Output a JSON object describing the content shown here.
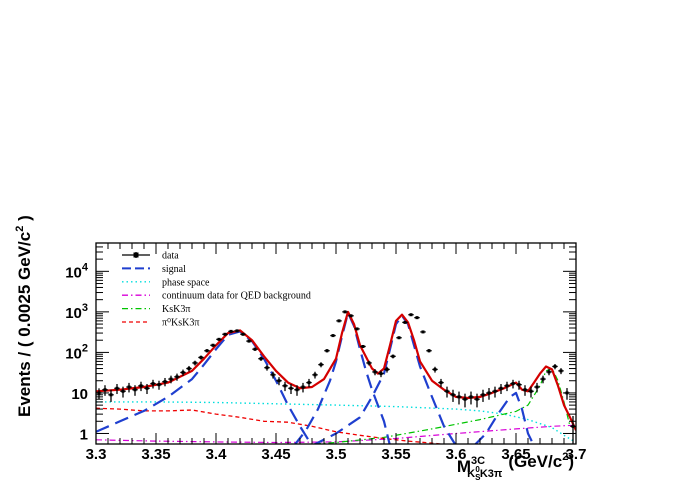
{
  "chart_data": {
    "type": "line",
    "title": "",
    "xlabel": {
      "main": "M",
      "sup": "3C",
      "sub_pre": "K",
      "sub_s": "S",
      "sub_sup": "0",
      "sub_post": "K3π",
      "unit": "(GeV/c",
      "unit_sup": "2",
      "unit_close": ")"
    },
    "ylabel": {
      "main": "Events / ( 0.0025 GeV/c",
      "sup": "2",
      "close": " )"
    },
    "xlim": [
      3.3,
      3.7
    ],
    "ylim": [
      0.55,
      50000
    ],
    "log_y": true,
    "x_ticks": [
      "3.3",
      "3.35",
      "3.4",
      "3.45",
      "3.5",
      "3.55",
      "3.6",
      "3.65",
      "3.7"
    ],
    "y_ticks": [
      {
        "value": 1,
        "label": "1"
      },
      {
        "value": 10,
        "label": "10"
      },
      {
        "value": 100,
        "label": "10",
        "exp": "2"
      },
      {
        "value": 1000,
        "label": "10",
        "exp": "3"
      },
      {
        "value": 10000,
        "label": "10",
        "exp": "4"
      }
    ],
    "legend": [
      {
        "label": "data",
        "color": "#000000",
        "style": "marker"
      },
      {
        "label": "signal",
        "color": "#1f3fcf",
        "style": "long-dash"
      },
      {
        "label": "phase space",
        "color": "#00dede",
        "style": "dotted"
      },
      {
        "label": "continuum data for QED background",
        "color": "#d800d8",
        "style": "dash-dot"
      },
      {
        "label": "KsK3π",
        "color": "#00c400",
        "style": "dash-dot"
      },
      {
        "label": "π⁰KsK3π",
        "color": "#ef0000",
        "style": "dashed"
      }
    ],
    "legend_position": "top-left",
    "series": [
      {
        "name": "total fit",
        "color": "#d40000",
        "style": "solid",
        "x": [
          3.3,
          3.32,
          3.34,
          3.36,
          3.38,
          3.39,
          3.4,
          3.41,
          3.42,
          3.43,
          3.44,
          3.45,
          3.46,
          3.47,
          3.48,
          3.49,
          3.5,
          3.505,
          3.51,
          3.515,
          3.52,
          3.53,
          3.535,
          3.54,
          3.545,
          3.55,
          3.555,
          3.56,
          3.565,
          3.57,
          3.58,
          3.59,
          3.6,
          3.61,
          3.62,
          3.63,
          3.64,
          3.65,
          3.655,
          3.66,
          3.665,
          3.67,
          3.675,
          3.68,
          3.685,
          3.69,
          3.695,
          3.7
        ],
        "y": [
          11,
          12,
          14,
          18,
          35,
          70,
          150,
          300,
          350,
          200,
          80,
          35,
          18,
          13,
          14,
          22,
          70,
          300,
          1000,
          500,
          150,
          40,
          30,
          40,
          150,
          600,
          850,
          550,
          200,
          60,
          20,
          12,
          8,
          7.5,
          8,
          10,
          13,
          18,
          12,
          11,
          18,
          30,
          45,
          38,
          15,
          5,
          2.5,
          1.2
        ]
      },
      {
        "name": "signal 1",
        "color": "#1f3fcf",
        "style": "long-dash",
        "x": [
          3.3,
          3.32,
          3.34,
          3.36,
          3.38,
          3.39,
          3.4,
          3.41,
          3.42,
          3.43,
          3.44,
          3.45,
          3.46,
          3.47,
          3.48
        ],
        "y": [
          1.1,
          2.0,
          3.6,
          8,
          22,
          50,
          120,
          270,
          330,
          190,
          70,
          20,
          5,
          1.5,
          0.5
        ]
      },
      {
        "name": "signal 2",
        "color": "#1f3fcf",
        "style": "long-dash",
        "x": [
          3.465,
          3.475,
          3.485,
          3.495,
          3.5,
          3.505,
          3.51,
          3.515,
          3.52,
          3.525,
          3.53,
          3.54,
          3.545
        ],
        "y": [
          0.5,
          1.2,
          4,
          20,
          60,
          250,
          950,
          450,
          120,
          35,
          12,
          2,
          0.5
        ]
      },
      {
        "name": "signal 3",
        "color": "#1f3fcf",
        "style": "long-dash",
        "x": [
          3.48,
          3.5,
          3.52,
          3.53,
          3.54,
          3.545,
          3.55,
          3.555,
          3.56,
          3.565,
          3.57,
          3.58,
          3.59,
          3.6
        ],
        "y": [
          0.5,
          1.0,
          2.5,
          8,
          30,
          120,
          500,
          800,
          500,
          150,
          45,
          8,
          1.5,
          0.5
        ]
      },
      {
        "name": "signal 4",
        "color": "#1f3fcf",
        "style": "long-dash",
        "x": [
          3.615,
          3.625,
          3.635,
          3.645,
          3.65,
          3.655,
          3.66,
          3.665
        ],
        "y": [
          0.5,
          1.0,
          3,
          8,
          10,
          4,
          1.0,
          0.5
        ]
      },
      {
        "name": "phase space",
        "color": "#00dede",
        "style": "dotted",
        "x": [
          3.3,
          3.35,
          3.4,
          3.45,
          3.5,
          3.55,
          3.6,
          3.62,
          3.64,
          3.66,
          3.68,
          3.69,
          3.7
        ],
        "y": [
          6,
          6,
          5.8,
          5.4,
          5,
          4.6,
          4,
          3.6,
          3,
          2.2,
          1.4,
          0.9,
          0.6
        ]
      },
      {
        "name": "continuum data for QED background",
        "color": "#d800d8",
        "style": "dash-dot",
        "x": [
          3.3,
          3.35,
          3.4,
          3.45,
          3.5,
          3.55,
          3.6,
          3.65,
          3.68,
          3.7
        ],
        "y": [
          0.7,
          0.65,
          0.62,
          0.6,
          0.62,
          0.75,
          1.0,
          1.3,
          1.5,
          1.6
        ]
      },
      {
        "name": "KsK3π",
        "color": "#00c400",
        "style": "dash-dot",
        "x": [
          3.46,
          3.5,
          3.54,
          3.58,
          3.62,
          3.65,
          3.66,
          3.67,
          3.675,
          3.68,
          3.685,
          3.69,
          3.695
        ],
        "y": [
          0.5,
          0.6,
          0.8,
          1.3,
          2.2,
          3.5,
          5,
          15,
          35,
          40,
          20,
          6,
          1.5
        ]
      },
      {
        "name": "π⁰KsK3π",
        "color": "#ef0000",
        "style": "dashed",
        "x": [
          3.3,
          3.32,
          3.34,
          3.36,
          3.38,
          3.4,
          3.42,
          3.44,
          3.46,
          3.48,
          3.5,
          3.52,
          3.54,
          3.56,
          3.58,
          3.6
        ],
        "y": [
          4.2,
          4.0,
          3.6,
          3.6,
          3.8,
          3.0,
          2.5,
          2.0,
          1.9,
          1.5,
          1.1,
          0.9,
          0.75,
          0.65,
          0.58,
          0.5
        ]
      }
    ],
    "data_points": {
      "name": "data",
      "color": "#000000",
      "x": [
        3.3025,
        3.3075,
        3.3125,
        3.3175,
        3.3225,
        3.3275,
        3.3325,
        3.3375,
        3.3425,
        3.3475,
        3.3525,
        3.3575,
        3.3625,
        3.3675,
        3.3725,
        3.3775,
        3.3825,
        3.3875,
        3.3925,
        3.3975,
        3.4025,
        3.4075,
        3.4125,
        3.4175,
        3.4225,
        3.4275,
        3.4325,
        3.4375,
        3.4425,
        3.4475,
        3.4525,
        3.4575,
        3.4625,
        3.4675,
        3.4725,
        3.4775,
        3.4825,
        3.4875,
        3.4925,
        3.4975,
        3.5025,
        3.5075,
        3.5125,
        3.5175,
        3.5225,
        3.5275,
        3.5325,
        3.5375,
        3.5425,
        3.5475,
        3.5525,
        3.5575,
        3.5625,
        3.5675,
        3.5725,
        3.5775,
        3.5825,
        3.5875,
        3.5925,
        3.5975,
        3.6025,
        3.6075,
        3.6125,
        3.6175,
        3.6225,
        3.6275,
        3.6325,
        3.6375,
        3.6425,
        3.6475,
        3.6525,
        3.6575,
        3.6625,
        3.6675,
        3.6725,
        3.6775,
        3.6825,
        3.6875,
        3.6925,
        3.6975
      ],
      "y": [
        10,
        12,
        9,
        13,
        11,
        14,
        12,
        15,
        13,
        17,
        16,
        19,
        22,
        25,
        32,
        40,
        55,
        75,
        110,
        150,
        210,
        280,
        330,
        340,
        280,
        190,
        120,
        70,
        42,
        28,
        20,
        15,
        13,
        12,
        14,
        18,
        28,
        50,
        110,
        260,
        600,
        1000,
        800,
        380,
        140,
        55,
        33,
        30,
        38,
        80,
        230,
        550,
        850,
        720,
        320,
        110,
        38,
        18,
        11,
        9,
        8,
        7,
        8,
        7,
        9,
        10,
        11,
        13,
        15,
        17,
        16,
        12,
        11,
        14,
        22,
        33,
        45,
        35,
        10,
        1.5
      ],
      "yerr": [
        3,
        3.5,
        3,
        3.6,
        3.3,
        3.7,
        3.5,
        3.9,
        3.6,
        4.1,
        4,
        4.4,
        4.7,
        5,
        5.7,
        6.3,
        7.4,
        8.7,
        10.5,
        12.2,
        14.5,
        16.7,
        18.2,
        18.4,
        16.7,
        13.8,
        11,
        8.4,
        6.5,
        5.3,
        4.5,
        3.9,
        3.6,
        3.5,
        3.7,
        4.2,
        5.3,
        7.1,
        10.5,
        16.1,
        24.5,
        31.6,
        28.3,
        19.5,
        11.8,
        7.4,
        5.7,
        5.5,
        6.2,
        8.9,
        15.2,
        23.5,
        29.2,
        26.8,
        17.9,
        10.5,
        6.2,
        4.2,
        3.3,
        3,
        2.8,
        2.6,
        2.8,
        2.6,
        3,
        3.2,
        3.3,
        3.6,
        3.9,
        4.1,
        4,
        3.5,
        3.3,
        3.7,
        4.7,
        5.7,
        6.7,
        5.9,
        3.2,
        1.2
      ]
    }
  }
}
